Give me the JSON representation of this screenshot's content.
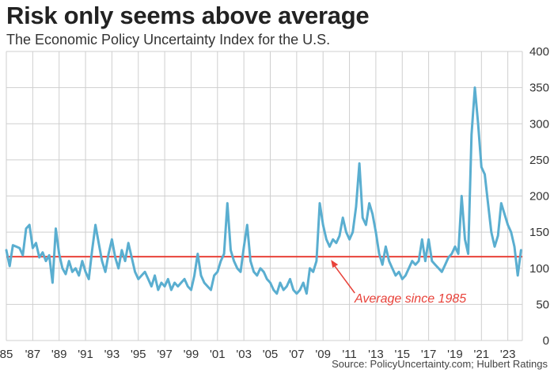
{
  "title": "Risk only seems above average",
  "subtitle": "The Economic Policy Uncertainty Index for the U.S.",
  "source": "Source: PolicyUncertainty.com; Hulbert Ratings",
  "colors": {
    "line": "#5aaed0",
    "average": "#e8423a",
    "grid": "#cfcfcf",
    "text": "#333333"
  },
  "chart_data": {
    "type": "line",
    "title": "Risk only seems above average",
    "subtitle": "The Economic Policy Uncertainty Index for the U.S.",
    "x_tick_labels": [
      "85",
      "'87",
      "'89",
      "'91",
      "'93",
      "'95",
      "'97",
      "'99",
      "'01",
      "'03",
      "'05",
      "'07",
      "'09",
      "'11",
      "'13",
      "'15",
      "'17",
      "'19",
      "'21",
      "'23"
    ],
    "x_tick_years": [
      1985,
      1987,
      1989,
      1991,
      1993,
      1995,
      1997,
      1999,
      2001,
      2003,
      2005,
      2007,
      2009,
      2011,
      2013,
      2015,
      2017,
      2019,
      2021,
      2023
    ],
    "xlim": [
      1985,
      2024.1
    ],
    "y_ticks": [
      0,
      50,
      100,
      150,
      200,
      250,
      300,
      350,
      400
    ],
    "ylim": [
      0,
      400
    ],
    "y_axis_side": "right",
    "grid": true,
    "average": {
      "value": 116,
      "label": "Average since 1985"
    },
    "series": [
      {
        "points": [
          [
            1985.0,
            125
          ],
          [
            1985.25,
            103
          ],
          [
            1985.5,
            132
          ],
          [
            1985.75,
            130
          ],
          [
            1986.0,
            128
          ],
          [
            1986.25,
            118
          ],
          [
            1986.5,
            155
          ],
          [
            1986.75,
            160
          ],
          [
            1987.0,
            128
          ],
          [
            1987.25,
            135
          ],
          [
            1987.5,
            115
          ],
          [
            1987.75,
            122
          ],
          [
            1988.0,
            110
          ],
          [
            1988.25,
            118
          ],
          [
            1988.5,
            80
          ],
          [
            1988.75,
            155
          ],
          [
            1989.0,
            120
          ],
          [
            1989.25,
            100
          ],
          [
            1989.5,
            92
          ],
          [
            1989.75,
            110
          ],
          [
            1990.0,
            95
          ],
          [
            1990.25,
            100
          ],
          [
            1990.5,
            90
          ],
          [
            1990.75,
            110
          ],
          [
            1991.0,
            95
          ],
          [
            1991.25,
            85
          ],
          [
            1991.5,
            125
          ],
          [
            1991.75,
            160
          ],
          [
            1992.0,
            135
          ],
          [
            1992.25,
            110
          ],
          [
            1992.5,
            95
          ],
          [
            1992.75,
            120
          ],
          [
            1993.0,
            140
          ],
          [
            1993.25,
            115
          ],
          [
            1993.5,
            100
          ],
          [
            1993.75,
            125
          ],
          [
            1994.0,
            110
          ],
          [
            1994.25,
            135
          ],
          [
            1994.5,
            115
          ],
          [
            1994.75,
            95
          ],
          [
            1995.0,
            85
          ],
          [
            1995.25,
            90
          ],
          [
            1995.5,
            95
          ],
          [
            1995.75,
            85
          ],
          [
            1996.0,
            75
          ],
          [
            1996.25,
            90
          ],
          [
            1996.5,
            70
          ],
          [
            1996.75,
            80
          ],
          [
            1997.0,
            75
          ],
          [
            1997.25,
            85
          ],
          [
            1997.5,
            70
          ],
          [
            1997.75,
            80
          ],
          [
            1998.0,
            75
          ],
          [
            1998.25,
            80
          ],
          [
            1998.5,
            85
          ],
          [
            1998.75,
            75
          ],
          [
            1999.0,
            70
          ],
          [
            1999.25,
            90
          ],
          [
            1999.5,
            120
          ],
          [
            1999.75,
            90
          ],
          [
            2000.0,
            80
          ],
          [
            2000.25,
            75
          ],
          [
            2000.5,
            70
          ],
          [
            2000.75,
            90
          ],
          [
            2001.0,
            95
          ],
          [
            2001.25,
            110
          ],
          [
            2001.5,
            120
          ],
          [
            2001.75,
            190
          ],
          [
            2002.0,
            125
          ],
          [
            2002.25,
            110
          ],
          [
            2002.5,
            100
          ],
          [
            2002.75,
            95
          ],
          [
            2003.0,
            130
          ],
          [
            2003.25,
            160
          ],
          [
            2003.5,
            110
          ],
          [
            2003.75,
            95
          ],
          [
            2004.0,
            90
          ],
          [
            2004.25,
            100
          ],
          [
            2004.5,
            95
          ],
          [
            2004.75,
            85
          ],
          [
            2005.0,
            80
          ],
          [
            2005.25,
            70
          ],
          [
            2005.5,
            65
          ],
          [
            2005.75,
            80
          ],
          [
            2006.0,
            70
          ],
          [
            2006.25,
            75
          ],
          [
            2006.5,
            85
          ],
          [
            2006.75,
            70
          ],
          [
            2007.0,
            65
          ],
          [
            2007.25,
            70
          ],
          [
            2007.5,
            80
          ],
          [
            2007.75,
            65
          ],
          [
            2008.0,
            100
          ],
          [
            2008.25,
            95
          ],
          [
            2008.5,
            110
          ],
          [
            2008.75,
            190
          ],
          [
            2009.0,
            160
          ],
          [
            2009.25,
            140
          ],
          [
            2009.5,
            130
          ],
          [
            2009.75,
            140
          ],
          [
            2010.0,
            135
          ],
          [
            2010.25,
            145
          ],
          [
            2010.5,
            170
          ],
          [
            2010.75,
            150
          ],
          [
            2011.0,
            140
          ],
          [
            2011.25,
            150
          ],
          [
            2011.5,
            185
          ],
          [
            2011.75,
            245
          ],
          [
            2012.0,
            170
          ],
          [
            2012.25,
            160
          ],
          [
            2012.5,
            190
          ],
          [
            2012.75,
            175
          ],
          [
            2013.0,
            150
          ],
          [
            2013.25,
            120
          ],
          [
            2013.5,
            105
          ],
          [
            2013.75,
            130
          ],
          [
            2014.0,
            110
          ],
          [
            2014.25,
            100
          ],
          [
            2014.5,
            90
          ],
          [
            2014.75,
            95
          ],
          [
            2015.0,
            85
          ],
          [
            2015.25,
            90
          ],
          [
            2015.5,
            100
          ],
          [
            2015.75,
            110
          ],
          [
            2016.0,
            105
          ],
          [
            2016.25,
            110
          ],
          [
            2016.5,
            140
          ],
          [
            2016.75,
            110
          ],
          [
            2017.0,
            140
          ],
          [
            2017.25,
            110
          ],
          [
            2017.5,
            105
          ],
          [
            2017.75,
            100
          ],
          [
            2018.0,
            95
          ],
          [
            2018.25,
            105
          ],
          [
            2018.5,
            115
          ],
          [
            2018.75,
            120
          ],
          [
            2019.0,
            130
          ],
          [
            2019.25,
            120
          ],
          [
            2019.5,
            200
          ],
          [
            2019.75,
            140
          ],
          [
            2020.0,
            120
          ],
          [
            2020.25,
            285
          ],
          [
            2020.5,
            350
          ],
          [
            2020.75,
            300
          ],
          [
            2021.0,
            240
          ],
          [
            2021.25,
            230
          ],
          [
            2021.5,
            190
          ],
          [
            2021.75,
            150
          ],
          [
            2022.0,
            130
          ],
          [
            2022.25,
            145
          ],
          [
            2022.5,
            190
          ],
          [
            2022.75,
            175
          ],
          [
            2023.0,
            160
          ],
          [
            2023.25,
            150
          ],
          [
            2023.5,
            130
          ],
          [
            2023.75,
            90
          ],
          [
            2024.0,
            125
          ]
        ]
      }
    ]
  }
}
